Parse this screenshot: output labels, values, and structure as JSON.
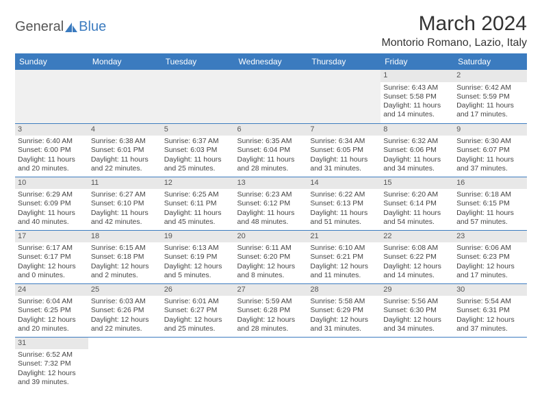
{
  "brand": {
    "part1": "General",
    "part2": "Blue"
  },
  "title": "March 2024",
  "location": "Montorio Romano, Lazio, Italy",
  "colors": {
    "header_bg": "#3b7bbf",
    "header_text": "#ffffff",
    "daynum_bg": "#e8e8e8",
    "empty_bg": "#f0f0f0",
    "rule": "#3b7bbf",
    "body_text": "#444444",
    "title_text": "#333333"
  },
  "days_of_week": [
    "Sunday",
    "Monday",
    "Tuesday",
    "Wednesday",
    "Thursday",
    "Friday",
    "Saturday"
  ],
  "weeks": [
    [
      null,
      null,
      null,
      null,
      null,
      {
        "n": "1",
        "sunrise": "Sunrise: 6:43 AM",
        "sunset": "Sunset: 5:58 PM",
        "daylight1": "Daylight: 11 hours",
        "daylight2": "and 14 minutes."
      },
      {
        "n": "2",
        "sunrise": "Sunrise: 6:42 AM",
        "sunset": "Sunset: 5:59 PM",
        "daylight1": "Daylight: 11 hours",
        "daylight2": "and 17 minutes."
      }
    ],
    [
      {
        "n": "3",
        "sunrise": "Sunrise: 6:40 AM",
        "sunset": "Sunset: 6:00 PM",
        "daylight1": "Daylight: 11 hours",
        "daylight2": "and 20 minutes."
      },
      {
        "n": "4",
        "sunrise": "Sunrise: 6:38 AM",
        "sunset": "Sunset: 6:01 PM",
        "daylight1": "Daylight: 11 hours",
        "daylight2": "and 22 minutes."
      },
      {
        "n": "5",
        "sunrise": "Sunrise: 6:37 AM",
        "sunset": "Sunset: 6:03 PM",
        "daylight1": "Daylight: 11 hours",
        "daylight2": "and 25 minutes."
      },
      {
        "n": "6",
        "sunrise": "Sunrise: 6:35 AM",
        "sunset": "Sunset: 6:04 PM",
        "daylight1": "Daylight: 11 hours",
        "daylight2": "and 28 minutes."
      },
      {
        "n": "7",
        "sunrise": "Sunrise: 6:34 AM",
        "sunset": "Sunset: 6:05 PM",
        "daylight1": "Daylight: 11 hours",
        "daylight2": "and 31 minutes."
      },
      {
        "n": "8",
        "sunrise": "Sunrise: 6:32 AM",
        "sunset": "Sunset: 6:06 PM",
        "daylight1": "Daylight: 11 hours",
        "daylight2": "and 34 minutes."
      },
      {
        "n": "9",
        "sunrise": "Sunrise: 6:30 AM",
        "sunset": "Sunset: 6:07 PM",
        "daylight1": "Daylight: 11 hours",
        "daylight2": "and 37 minutes."
      }
    ],
    [
      {
        "n": "10",
        "sunrise": "Sunrise: 6:29 AM",
        "sunset": "Sunset: 6:09 PM",
        "daylight1": "Daylight: 11 hours",
        "daylight2": "and 40 minutes."
      },
      {
        "n": "11",
        "sunrise": "Sunrise: 6:27 AM",
        "sunset": "Sunset: 6:10 PM",
        "daylight1": "Daylight: 11 hours",
        "daylight2": "and 42 minutes."
      },
      {
        "n": "12",
        "sunrise": "Sunrise: 6:25 AM",
        "sunset": "Sunset: 6:11 PM",
        "daylight1": "Daylight: 11 hours",
        "daylight2": "and 45 minutes."
      },
      {
        "n": "13",
        "sunrise": "Sunrise: 6:23 AM",
        "sunset": "Sunset: 6:12 PM",
        "daylight1": "Daylight: 11 hours",
        "daylight2": "and 48 minutes."
      },
      {
        "n": "14",
        "sunrise": "Sunrise: 6:22 AM",
        "sunset": "Sunset: 6:13 PM",
        "daylight1": "Daylight: 11 hours",
        "daylight2": "and 51 minutes."
      },
      {
        "n": "15",
        "sunrise": "Sunrise: 6:20 AM",
        "sunset": "Sunset: 6:14 PM",
        "daylight1": "Daylight: 11 hours",
        "daylight2": "and 54 minutes."
      },
      {
        "n": "16",
        "sunrise": "Sunrise: 6:18 AM",
        "sunset": "Sunset: 6:15 PM",
        "daylight1": "Daylight: 11 hours",
        "daylight2": "and 57 minutes."
      }
    ],
    [
      {
        "n": "17",
        "sunrise": "Sunrise: 6:17 AM",
        "sunset": "Sunset: 6:17 PM",
        "daylight1": "Daylight: 12 hours",
        "daylight2": "and 0 minutes."
      },
      {
        "n": "18",
        "sunrise": "Sunrise: 6:15 AM",
        "sunset": "Sunset: 6:18 PM",
        "daylight1": "Daylight: 12 hours",
        "daylight2": "and 2 minutes."
      },
      {
        "n": "19",
        "sunrise": "Sunrise: 6:13 AM",
        "sunset": "Sunset: 6:19 PM",
        "daylight1": "Daylight: 12 hours",
        "daylight2": "and 5 minutes."
      },
      {
        "n": "20",
        "sunrise": "Sunrise: 6:11 AM",
        "sunset": "Sunset: 6:20 PM",
        "daylight1": "Daylight: 12 hours",
        "daylight2": "and 8 minutes."
      },
      {
        "n": "21",
        "sunrise": "Sunrise: 6:10 AM",
        "sunset": "Sunset: 6:21 PM",
        "daylight1": "Daylight: 12 hours",
        "daylight2": "and 11 minutes."
      },
      {
        "n": "22",
        "sunrise": "Sunrise: 6:08 AM",
        "sunset": "Sunset: 6:22 PM",
        "daylight1": "Daylight: 12 hours",
        "daylight2": "and 14 minutes."
      },
      {
        "n": "23",
        "sunrise": "Sunrise: 6:06 AM",
        "sunset": "Sunset: 6:23 PM",
        "daylight1": "Daylight: 12 hours",
        "daylight2": "and 17 minutes."
      }
    ],
    [
      {
        "n": "24",
        "sunrise": "Sunrise: 6:04 AM",
        "sunset": "Sunset: 6:25 PM",
        "daylight1": "Daylight: 12 hours",
        "daylight2": "and 20 minutes."
      },
      {
        "n": "25",
        "sunrise": "Sunrise: 6:03 AM",
        "sunset": "Sunset: 6:26 PM",
        "daylight1": "Daylight: 12 hours",
        "daylight2": "and 22 minutes."
      },
      {
        "n": "26",
        "sunrise": "Sunrise: 6:01 AM",
        "sunset": "Sunset: 6:27 PM",
        "daylight1": "Daylight: 12 hours",
        "daylight2": "and 25 minutes."
      },
      {
        "n": "27",
        "sunrise": "Sunrise: 5:59 AM",
        "sunset": "Sunset: 6:28 PM",
        "daylight1": "Daylight: 12 hours",
        "daylight2": "and 28 minutes."
      },
      {
        "n": "28",
        "sunrise": "Sunrise: 5:58 AM",
        "sunset": "Sunset: 6:29 PM",
        "daylight1": "Daylight: 12 hours",
        "daylight2": "and 31 minutes."
      },
      {
        "n": "29",
        "sunrise": "Sunrise: 5:56 AM",
        "sunset": "Sunset: 6:30 PM",
        "daylight1": "Daylight: 12 hours",
        "daylight2": "and 34 minutes."
      },
      {
        "n": "30",
        "sunrise": "Sunrise: 5:54 AM",
        "sunset": "Sunset: 6:31 PM",
        "daylight1": "Daylight: 12 hours",
        "daylight2": "and 37 minutes."
      }
    ],
    [
      {
        "n": "31",
        "sunrise": "Sunrise: 6:52 AM",
        "sunset": "Sunset: 7:32 PM",
        "daylight1": "Daylight: 12 hours",
        "daylight2": "and 39 minutes."
      },
      null,
      null,
      null,
      null,
      null,
      null
    ]
  ]
}
